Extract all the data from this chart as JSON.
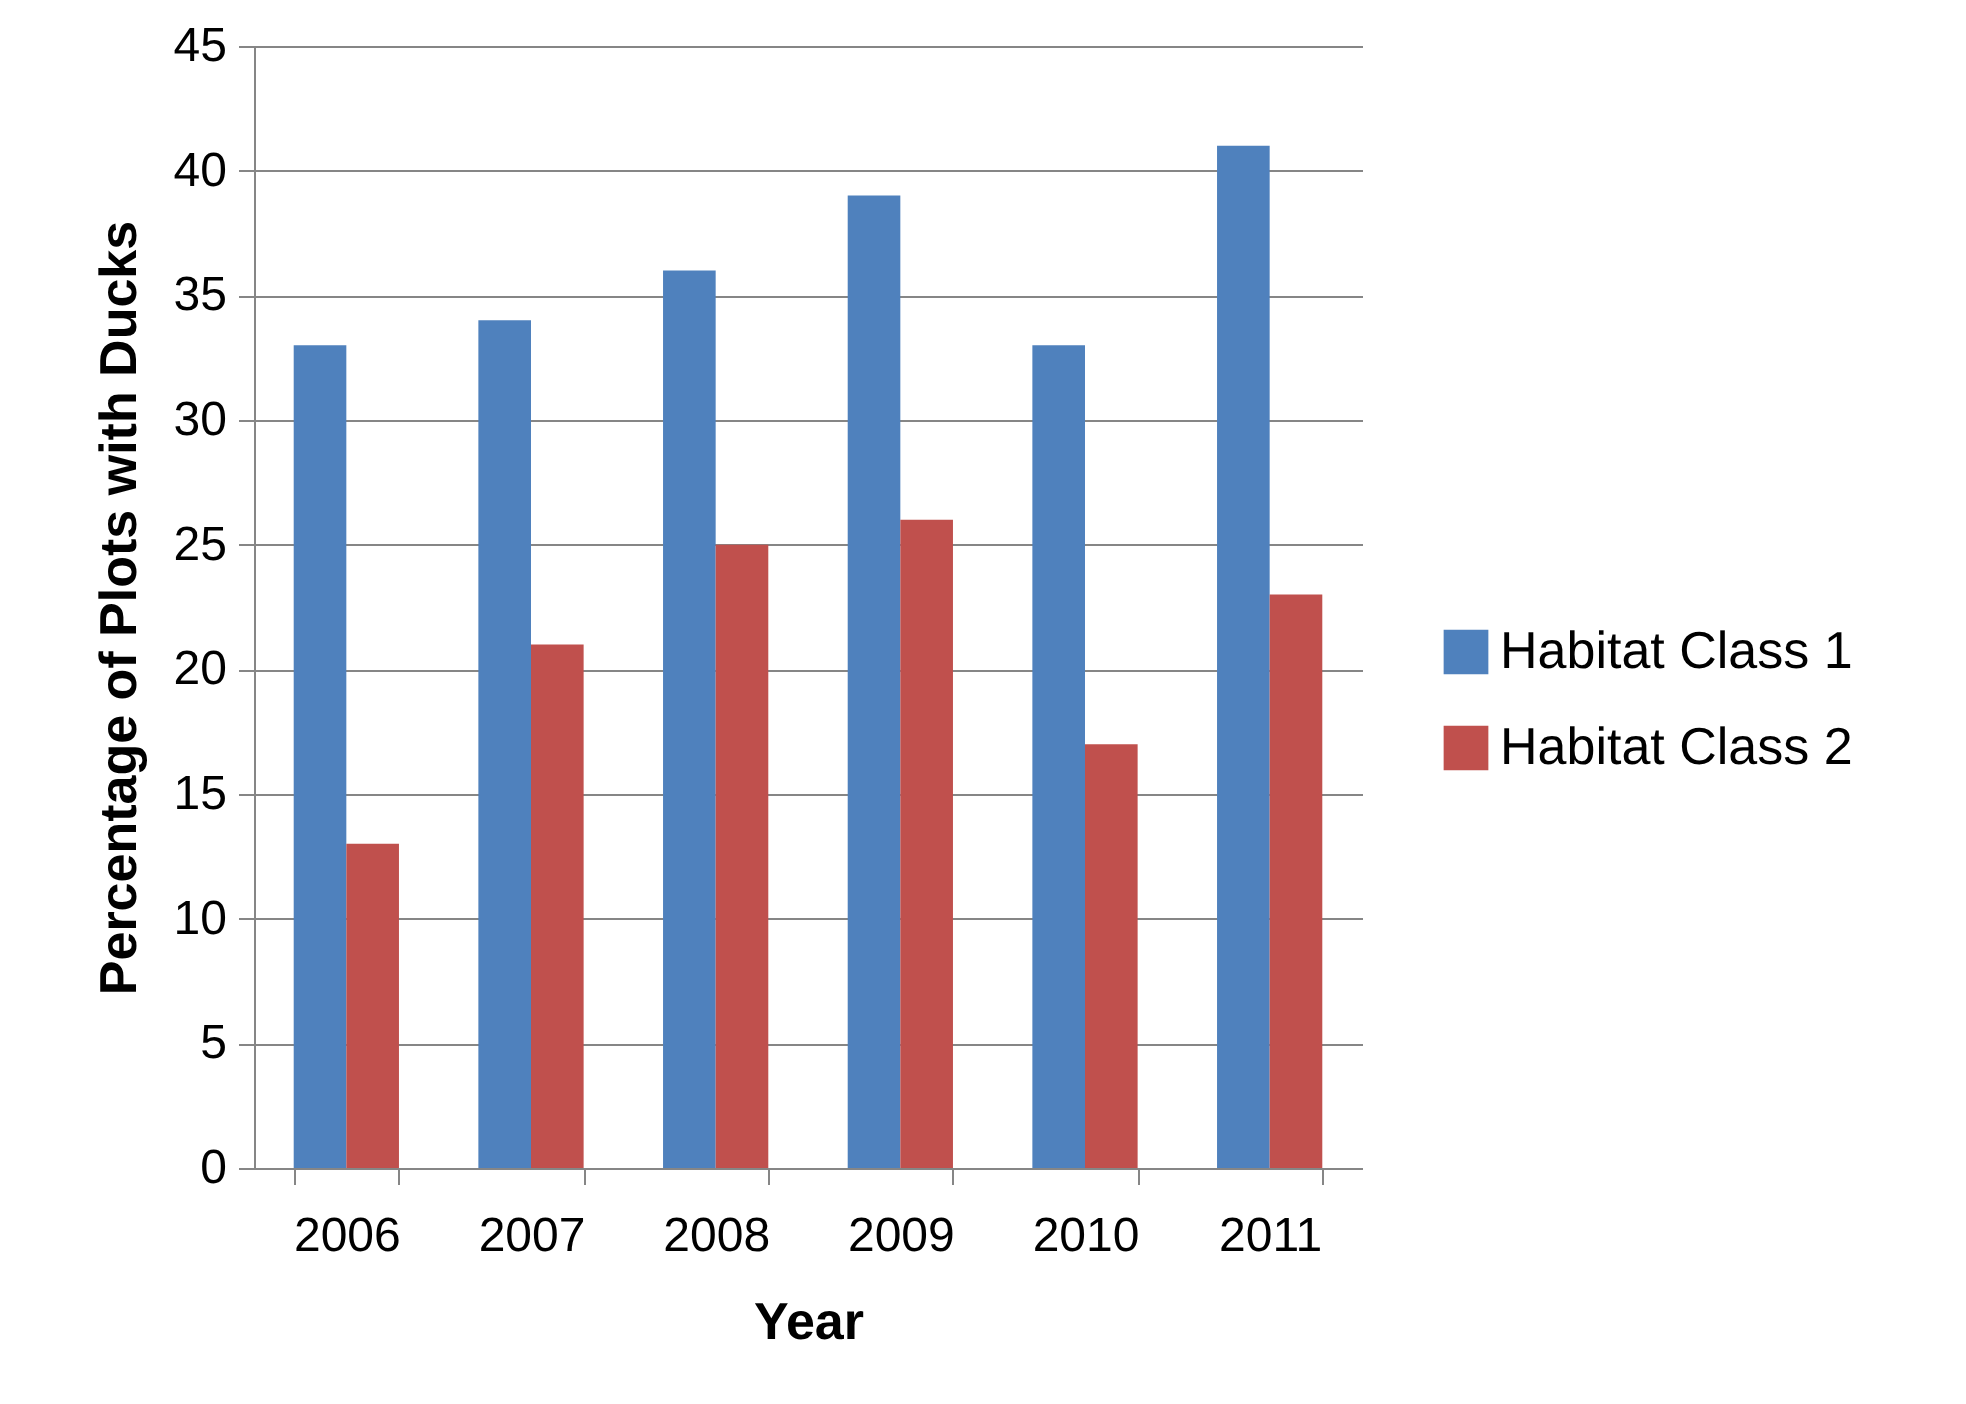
{
  "chart_data": {
    "type": "bar",
    "xlabel": "Year",
    "ylabel": "Percentage of Plots with Ducks",
    "categories": [
      "2006",
      "2007",
      "2008",
      "2009",
      "2010",
      "2011"
    ],
    "series": [
      {
        "name": "Habitat Class 1",
        "color": "#4f81bd",
        "values": [
          33,
          34,
          36,
          39,
          33,
          41
        ]
      },
      {
        "name": "Habitat Class 2",
        "color": "#c0504d",
        "values": [
          13,
          21,
          25,
          26,
          17,
          23
        ]
      }
    ],
    "ylim": [
      0,
      45
    ],
    "yticks": [
      0,
      5,
      10,
      15,
      20,
      25,
      30,
      35,
      40,
      45
    ],
    "grid": "y",
    "legend": "right"
  }
}
